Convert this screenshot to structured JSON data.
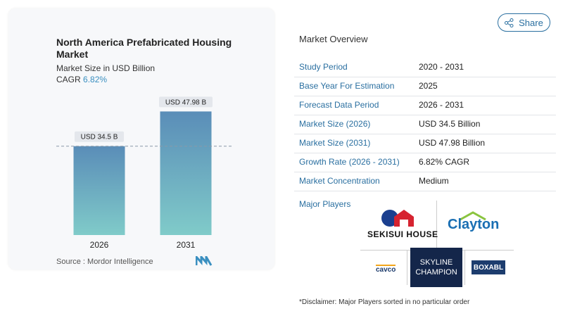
{
  "share": "Share",
  "chart_data": {
    "type": "bar",
    "title": "North America Prefabricated Housing Market",
    "subtitle": "Market Size in USD Billion",
    "cagr_label": "CAGR",
    "cagr_value": "6.82%",
    "categories": [
      "2026",
      "2031"
    ],
    "values": [
      34.5,
      47.98
    ],
    "value_labels": [
      "USD 34.5 B",
      "USD 47.98 B"
    ],
    "colors": [
      "#5a8db8",
      "#80cbc9"
    ]
  },
  "source": {
    "label": "Source :",
    "name": "Mordor Intelligence"
  },
  "overview": {
    "title": "Market Overview",
    "rows": [
      [
        "Study Period",
        "2020 - 2031"
      ],
      [
        "Base Year For Estimation",
        "2025"
      ],
      [
        "Forecast Data Period",
        "2026 - 2031"
      ],
      [
        "Market Size (2026)",
        "USD 34.5 Billion"
      ],
      [
        "Market Size (2031)",
        "USD 47.98 Billion"
      ],
      [
        "Growth Rate (2026 - 2031)",
        "6.82% CAGR"
      ],
      [
        "Market Concentration",
        "Medium"
      ]
    ]
  },
  "major_players": {
    "title": "Major Players",
    "players": [
      "SEKISUI HOUSE",
      "Clayton",
      "cavco",
      "SKYLINE CHAMPION",
      "BOXABL"
    ]
  },
  "disclaimer": "*Disclaimer: Major Players sorted in no particular order"
}
